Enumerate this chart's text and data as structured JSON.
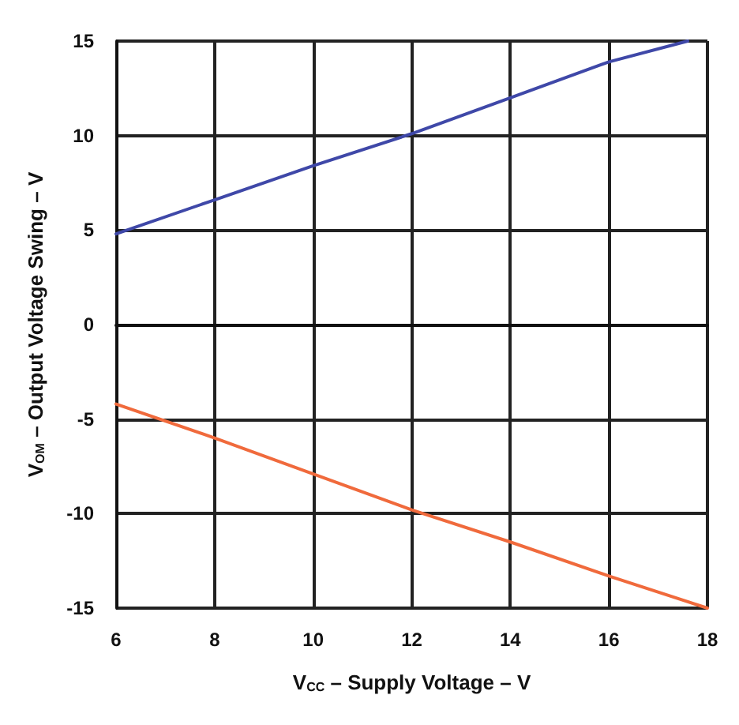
{
  "chart_data": {
    "type": "line",
    "xlabel": "V$_{CC}$ – Supply Voltage – V",
    "ylabel": "V$_{OM}$ – Output Voltage Swing – V",
    "series": [
      {
        "color": "#3f48a8",
        "x": [
          6,
          8,
          10,
          12,
          14,
          16,
          17.6
        ],
        "values": [
          4.8,
          6.6,
          8.4,
          10.1,
          12,
          13.9,
          15
        ]
      },
      {
        "color": "#f06a3c",
        "x": [
          6,
          8,
          10,
          12,
          14,
          16,
          18
        ],
        "values": [
          -4.2,
          -6.0,
          -7.9,
          -9.8,
          -11.5,
          -13.3,
          -15
        ]
      }
    ],
    "xlim": [
      6,
      18
    ],
    "xticks": [
      6,
      8,
      10,
      12,
      14,
      16,
      18
    ],
    "ylim": [
      -15,
      15
    ],
    "yticks": [
      -15,
      -10,
      -5,
      0,
      5,
      10,
      15
    ],
    "grid": true,
    "marker": "none",
    "line_style": "solid"
  }
}
